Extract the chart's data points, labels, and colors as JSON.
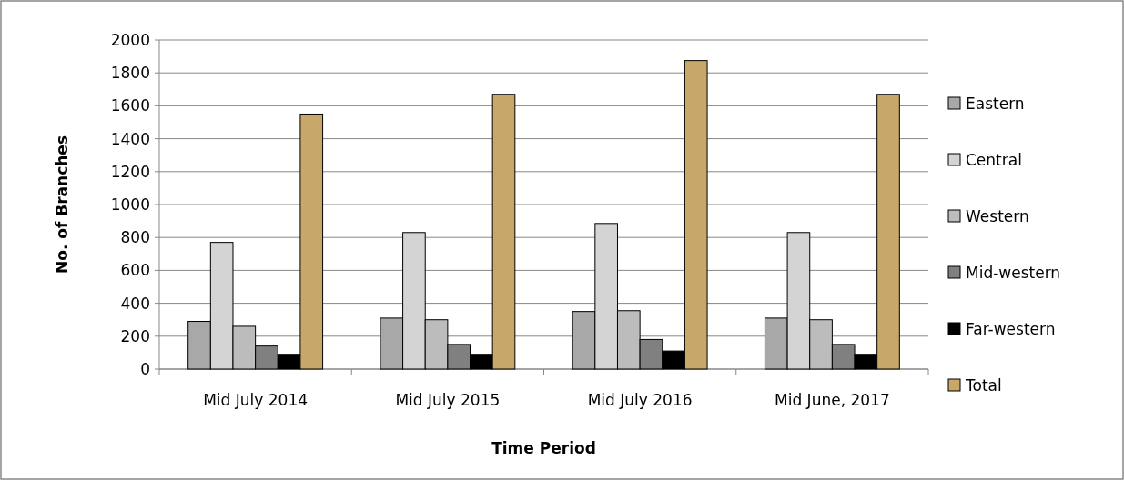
{
  "chart_data": {
    "type": "bar",
    "xlabel": "Time Period",
    "ylabel": "No. of Branches",
    "categories": [
      "Mid July 2014",
      "Mid July 2015",
      "Mid July 2016",
      "Mid June, 2017"
    ],
    "series": [
      {
        "name": "Eastern",
        "color": "#a8a8a8",
        "values": [
          290,
          310,
          350,
          310
        ]
      },
      {
        "name": "Central",
        "color": "#d4d4d4",
        "values": [
          770,
          830,
          885,
          830
        ]
      },
      {
        "name": "Western",
        "color": "#bcbcbc",
        "values": [
          260,
          300,
          355,
          300
        ]
      },
      {
        "name": "Mid-western",
        "color": "#808080",
        "values": [
          140,
          150,
          180,
          150
        ]
      },
      {
        "name": "Far-western",
        "color": "#000000",
        "values": [
          90,
          90,
          110,
          90
        ]
      },
      {
        "name": "Total",
        "color": "#c8a86a",
        "values": [
          1550,
          1670,
          1875,
          1670
        ]
      }
    ],
    "ylim": [
      0,
      2000
    ],
    "yticks": [
      0,
      200,
      400,
      600,
      800,
      1000,
      1200,
      1400,
      1600,
      1800,
      2000
    ],
    "grid": "y",
    "legend": "right"
  }
}
